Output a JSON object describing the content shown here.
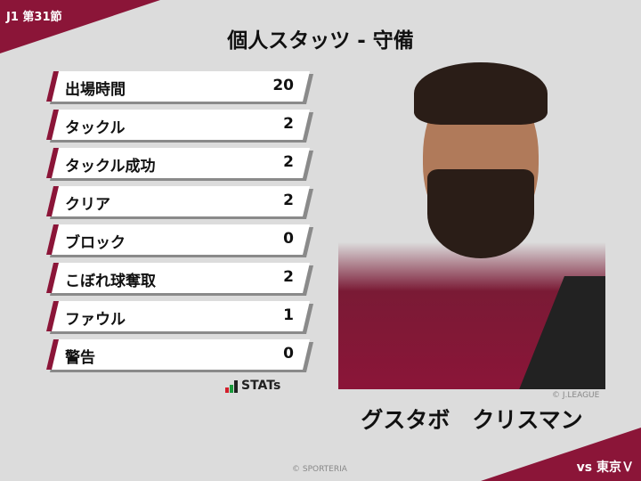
{
  "header": {
    "round": "J1 第31節",
    "title": "個人スタッツ - 守備",
    "opponent": "vs 東京Ｖ"
  },
  "stats": [
    {
      "label": "出場時間",
      "value": "20"
    },
    {
      "label": "タックル",
      "value": "2"
    },
    {
      "label": "タックル成功",
      "value": "2"
    },
    {
      "label": "クリア",
      "value": "2"
    },
    {
      "label": "ブロック",
      "value": "0"
    },
    {
      "label": "こぼれ球奪取",
      "value": "2"
    },
    {
      "label": "ファウル",
      "value": "1"
    },
    {
      "label": "警告",
      "value": "0"
    }
  ],
  "logo": {
    "text": "STATs"
  },
  "player": {
    "name": "グスタボ　クリスマン",
    "photo_credit": "© J.LEAGUE"
  },
  "footer": {
    "credit": "© SPORTERIA"
  },
  "colors": {
    "accent": "#8b1538",
    "background": "#dcdcdc"
  }
}
